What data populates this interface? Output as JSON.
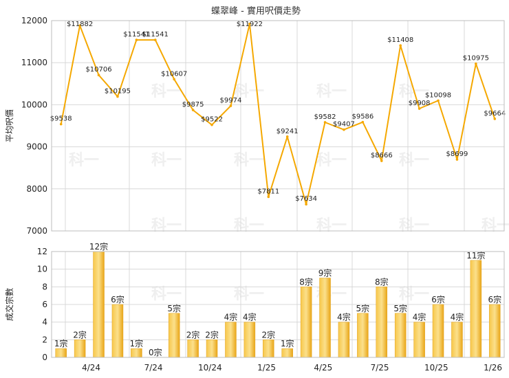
{
  "chart_data": [
    {
      "type": "line",
      "title": "蝶翠峰 - 實用呎價走勢",
      "ylabel": "平均呎價",
      "ylim": [
        7000,
        12000
      ],
      "yticks": [
        7000,
        8000,
        9000,
        10000,
        11000,
        12000
      ],
      "color": "#f5a800",
      "grid": true,
      "values": [
        9538,
        11882,
        10706,
        10195,
        11541,
        11541,
        10607,
        9875,
        9522,
        9974,
        11922,
        7811,
        9241,
        7634,
        9582,
        9407,
        9586,
        8666,
        11408,
        9908,
        10098,
        8699,
        10975,
        9664
      ],
      "labels": [
        "$9538",
        "$11882",
        "$10706",
        "$10195",
        "$11541",
        "$11541",
        "$10607",
        "$9875",
        "$9522",
        "$9974",
        "$11922",
        "$7811",
        "$9241",
        "$7634",
        "$9582",
        "$9407",
        "$9586",
        "$8666",
        "$11408",
        "$9908",
        "$10098",
        "$8699",
        "$10975",
        "$9664"
      ]
    },
    {
      "type": "bar",
      "ylabel": "成交宗數",
      "ylim": [
        0,
        12
      ],
      "yticks": [
        0,
        2,
        4,
        6,
        8,
        10,
        12
      ],
      "color": "#f5a800",
      "grid": true,
      "values": [
        1,
        2,
        12,
        6,
        1,
        0,
        5,
        2,
        2,
        4,
        4,
        2,
        1,
        8,
        9,
        4,
        5,
        8,
        5,
        4,
        6,
        4,
        11,
        6
      ],
      "labels": [
        "1宗",
        "2宗",
        "12宗",
        "6宗",
        "1宗",
        "0宗",
        "5宗",
        "2宗",
        "2宗",
        "4宗",
        "4宗",
        "2宗",
        "1宗",
        "8宗",
        "9宗",
        "4宗",
        "5宗",
        "8宗",
        "5宗",
        "4宗",
        "6宗",
        "4宗",
        "11宗",
        "6宗"
      ],
      "xticks": [
        "4/24",
        "7/24",
        "10/24",
        "1/25",
        "4/25",
        "7/25",
        "10/25",
        "1/26"
      ]
    }
  ],
  "watermark": "科一"
}
